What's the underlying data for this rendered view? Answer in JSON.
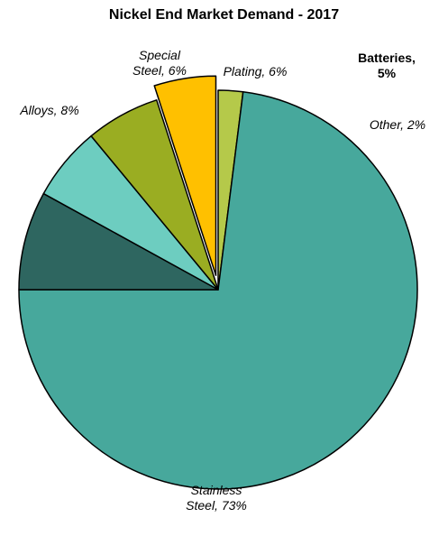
{
  "chart_data": {
    "type": "pie",
    "title": "Nickel End Market Demand - 2017",
    "start_angle_deg": 0,
    "direction": "clockwise",
    "slices": [
      {
        "label_lines": [
          "Other, 2%"
        ],
        "value": 2,
        "color": "#b5c94a",
        "exploded": false,
        "bold": false
      },
      {
        "label_lines": [
          "Stainless",
          "Steel, 73%"
        ],
        "value": 73,
        "color": "#47a89c",
        "exploded": false,
        "bold": false
      },
      {
        "label_lines": [
          "Alloys, 8%"
        ],
        "value": 8,
        "color": "#2e6660",
        "exploded": false,
        "bold": false
      },
      {
        "label_lines": [
          "Special",
          "Steel, 6%"
        ],
        "value": 6,
        "color": "#6dcdc0",
        "exploded": false,
        "bold": false
      },
      {
        "label_lines": [
          "Plating, 6%"
        ],
        "value": 6,
        "color": "#9aad22",
        "exploded": false,
        "bold": false
      },
      {
        "label_lines": [
          "Batteries,",
          "5%"
        ],
        "value": 5,
        "color": "#ffc000",
        "exploded": true,
        "bold": true
      }
    ]
  }
}
